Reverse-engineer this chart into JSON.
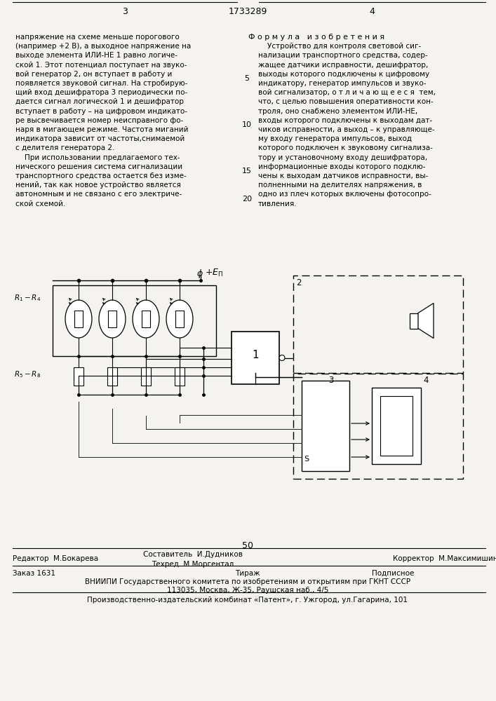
{
  "bg_color": "#f5f3ef",
  "page_number_left": "3",
  "page_center": "1733289",
  "page_number_right": "4",
  "col_left_lines": [
    "напряжение на схеме меньше порогового",
    "(например +2 В), а выходное напряжение на",
    "выходе элемента ИЛИ-НЕ 1 равно логиче-",
    "ской 1. Этот потенциал поступает на звуко-",
    "вой генератор 2, он вступает в работу и",
    "появляется звуковой сигнал. На стробирую-",
    "щий вход дешифратора 3 периодически по-",
    "дается сигнал логической 1 и дешифратор",
    "вступает в работу – на цифровом индикато-",
    "ре высвечивается номер неисправного фо-",
    "наря в мигающем режиме. Частота миганий",
    "индикатора зависит от частоты,снимаемой",
    "с делителя генератора 2.",
    "    При использовании предлагаемого тех-",
    "нического решения система сигнализации",
    "транспортного средства остается без изме-",
    "нений, так как новое устройство является",
    "автономным и не связано с его электриче-",
    "ской схемой."
  ],
  "col_right_title": "Ф о р м у л а   и з о б р е т е н и я",
  "col_right_lines": [
    "    Устройство для контроля световой сиг-",
    "нализации транспортного средства, содер-",
    "жащее датчики исправности, дешифратор,",
    "выходы которого подключены к цифровому",
    "индикатору, генератор импульсов и звуко-",
    "вой сигнализатор, о т л и ч а ю щ е е с я  тем,",
    "что, с целью повышения оперативности кон-",
    "троля, оно снабжено элементом ИЛИ-НЕ,",
    "входы которого подключены к выходам дат-",
    "чиков исправности, а выход – к управляюще-",
    "му входу генератора импульсов, выход",
    "которого подключен к звуковому сигнализа-",
    "тору и установочному входу дешифратора,",
    "информационные входы которого подклю-",
    "чены к выходам датчиков исправности, вы-",
    "полненными на делителях напряжения, в",
    "одно из плеч которых включены фотосопро-",
    "тивления."
  ],
  "footer_editor": "Редактор  М.Бокарева",
  "footer_compiler": "Составитель  И.Дудников",
  "footer_techred": "Техред  М.Моргентал",
  "footer_corrector": "Корректор  М.Максимишинец",
  "footer_order": "Заказ 1631",
  "footer_tirazh": "Тираж",
  "footer_podpisnoe": "Подписное",
  "footer_vniip": "ВНИИПИ Государственного комитета по изобретениям и открытиям при ГКНТ СССР",
  "footer_address": "113035, Москва, Ж-35, Раушская наб., 4/5",
  "footer_publisher": "Производственно-издательский комбинат «Патент», г. Ужгород, ул.Гагарина, 101"
}
